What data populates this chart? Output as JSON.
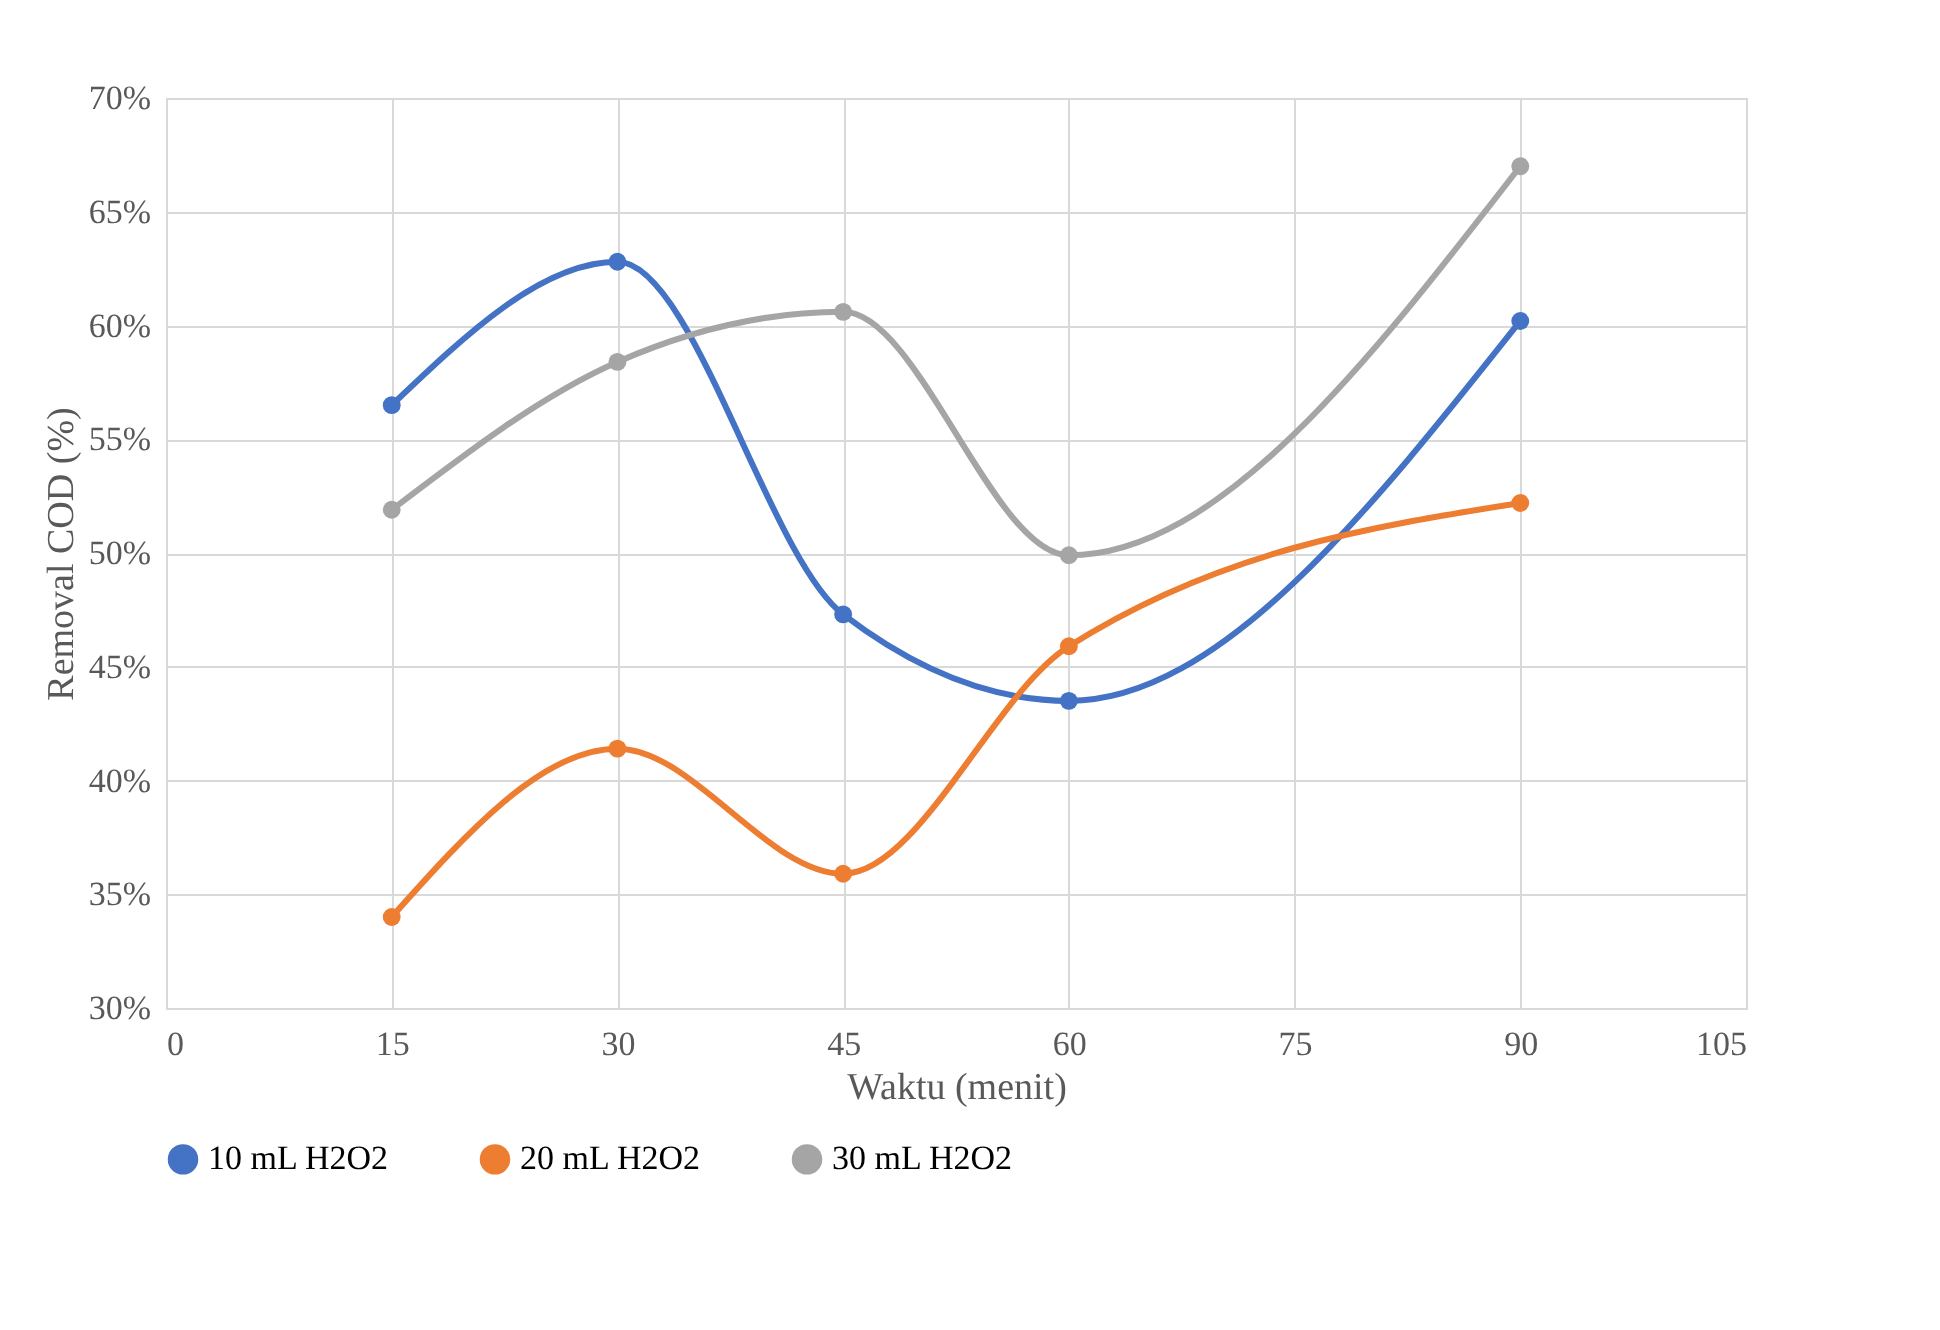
{
  "chart_data": {
    "type": "line",
    "xlabel": "Waktu (menit)",
    "ylabel": "Removal COD (%)",
    "x": [
      15,
      30,
      45,
      60,
      90
    ],
    "series": [
      {
        "name": "10 mL H2O2",
        "color": "#4472c4",
        "values": [
          56.5,
          62.8,
          47.3,
          43.5,
          60.2
        ]
      },
      {
        "name": "20 mL H2O2",
        "color": "#ed7d31",
        "values": [
          34.0,
          41.4,
          35.9,
          45.9,
          52.2
        ]
      },
      {
        "name": "30 mL H2O2",
        "color": "#a5a5a5",
        "values": [
          51.9,
          58.4,
          60.6,
          49.9,
          67.0
        ]
      }
    ],
    "xlim": [
      0,
      105
    ],
    "xticks": [
      0,
      15,
      30,
      45,
      60,
      75,
      90,
      105
    ],
    "ylim": [
      30,
      70
    ],
    "yticks": [
      {
        "value": 30,
        "label": "30%"
      },
      {
        "value": 35,
        "label": "35%"
      },
      {
        "value": 40,
        "label": "40%"
      },
      {
        "value": 45,
        "label": "45%"
      },
      {
        "value": 50,
        "label": "50%"
      },
      {
        "value": 55,
        "label": "55%"
      },
      {
        "value": 60,
        "label": "60%"
      },
      {
        "value": 65,
        "label": "65%"
      },
      {
        "value": 70,
        "label": "70%"
      }
    ],
    "grid": true,
    "legend": "bottom",
    "marker": "circle",
    "line_style": "solid"
  }
}
